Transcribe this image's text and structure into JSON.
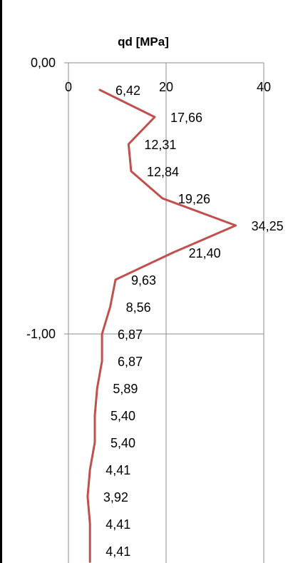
{
  "chart_data": {
    "type": "line",
    "title": "qd [MPa]",
    "xlabel": "",
    "ylabel": "",
    "x_axis_position": "top",
    "xlim": [
      0,
      40
    ],
    "x_ticks": [
      0,
      20,
      40
    ],
    "x_tick_labels": [
      "0",
      "20",
      "40"
    ],
    "y_ticks": [
      0,
      -1
    ],
    "y_tick_labels": [
      "0,00",
      "-1,00"
    ],
    "grid": true,
    "legend": "none",
    "series": [
      {
        "color": "#c0504d",
        "x": [
          6.42,
          17.66,
          12.31,
          12.84,
          19.26,
          34.25,
          21.4,
          9.63,
          8.56,
          6.87,
          6.87,
          5.89,
          5.4,
          5.4,
          4.41,
          3.92,
          4.41,
          4.41,
          4.41
        ],
        "y": [
          -0.1,
          -0.2,
          -0.3,
          -0.4,
          -0.5,
          -0.6,
          -0.7,
          -0.8,
          -0.9,
          -1.0,
          -1.1,
          -1.2,
          -1.3,
          -1.4,
          -1.5,
          -1.6,
          -1.7,
          -1.8,
          -1.84
        ],
        "labels": [
          "6,42",
          "17,66",
          "12,31",
          "12,84",
          "19,26",
          "34,25",
          "21,40",
          "9,63",
          "8,56",
          "6,87",
          "6,87",
          "5,89",
          "5,40",
          "5,40",
          "4,41",
          "3,92",
          "4,41",
          "4,41",
          ""
        ]
      }
    ]
  }
}
